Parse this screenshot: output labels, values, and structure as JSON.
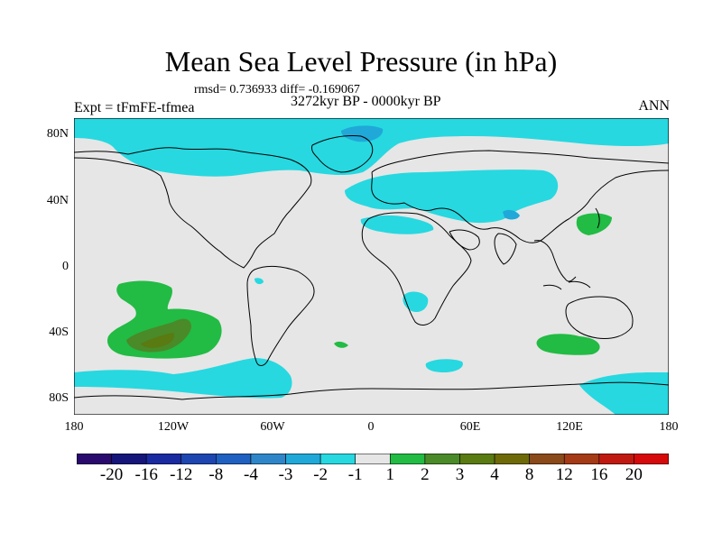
{
  "title": "Mean Sea Level Pressure (in hPa)",
  "stats": "rmsd= 0.736933 diff= -0.169067",
  "period": "3272kyr BP - 0000kyr BP",
  "expt": "Expt = tFmFE-tfmea",
  "season": "ANN",
  "lat_labels": [
    "80N",
    "40N",
    "0",
    "40S",
    "80S"
  ],
  "lon_labels": [
    "180",
    "120W",
    "60W",
    "0",
    "60E",
    "120E",
    "180"
  ],
  "colorbar": {
    "colors": [
      "#2a0a6e",
      "#15157a",
      "#1a2aa0",
      "#1e46b0",
      "#2060c0",
      "#2e86c8",
      "#20a8d8",
      "#27d8e0",
      "#e6e6e6",
      "#22bb44",
      "#4a8a28",
      "#5a7a12",
      "#6e6a08",
      "#8a4a1a",
      "#a43a16",
      "#c01a10",
      "#d60a0a"
    ],
    "labels": [
      "-20",
      "-16",
      "-12",
      "-8",
      "-4",
      "-3",
      "-2",
      "-1",
      "1",
      "2",
      "3",
      "4",
      "8",
      "12",
      "16",
      "20"
    ]
  },
  "colors": {
    "neutral": "#e6e6e6",
    "light_blue": "#27d8e0",
    "mid_blue": "#20a8d8",
    "dark_blue": "#2e86c8",
    "green": "#22bb44",
    "dark_green": "#4a8a28",
    "olive": "#5a7a12"
  }
}
